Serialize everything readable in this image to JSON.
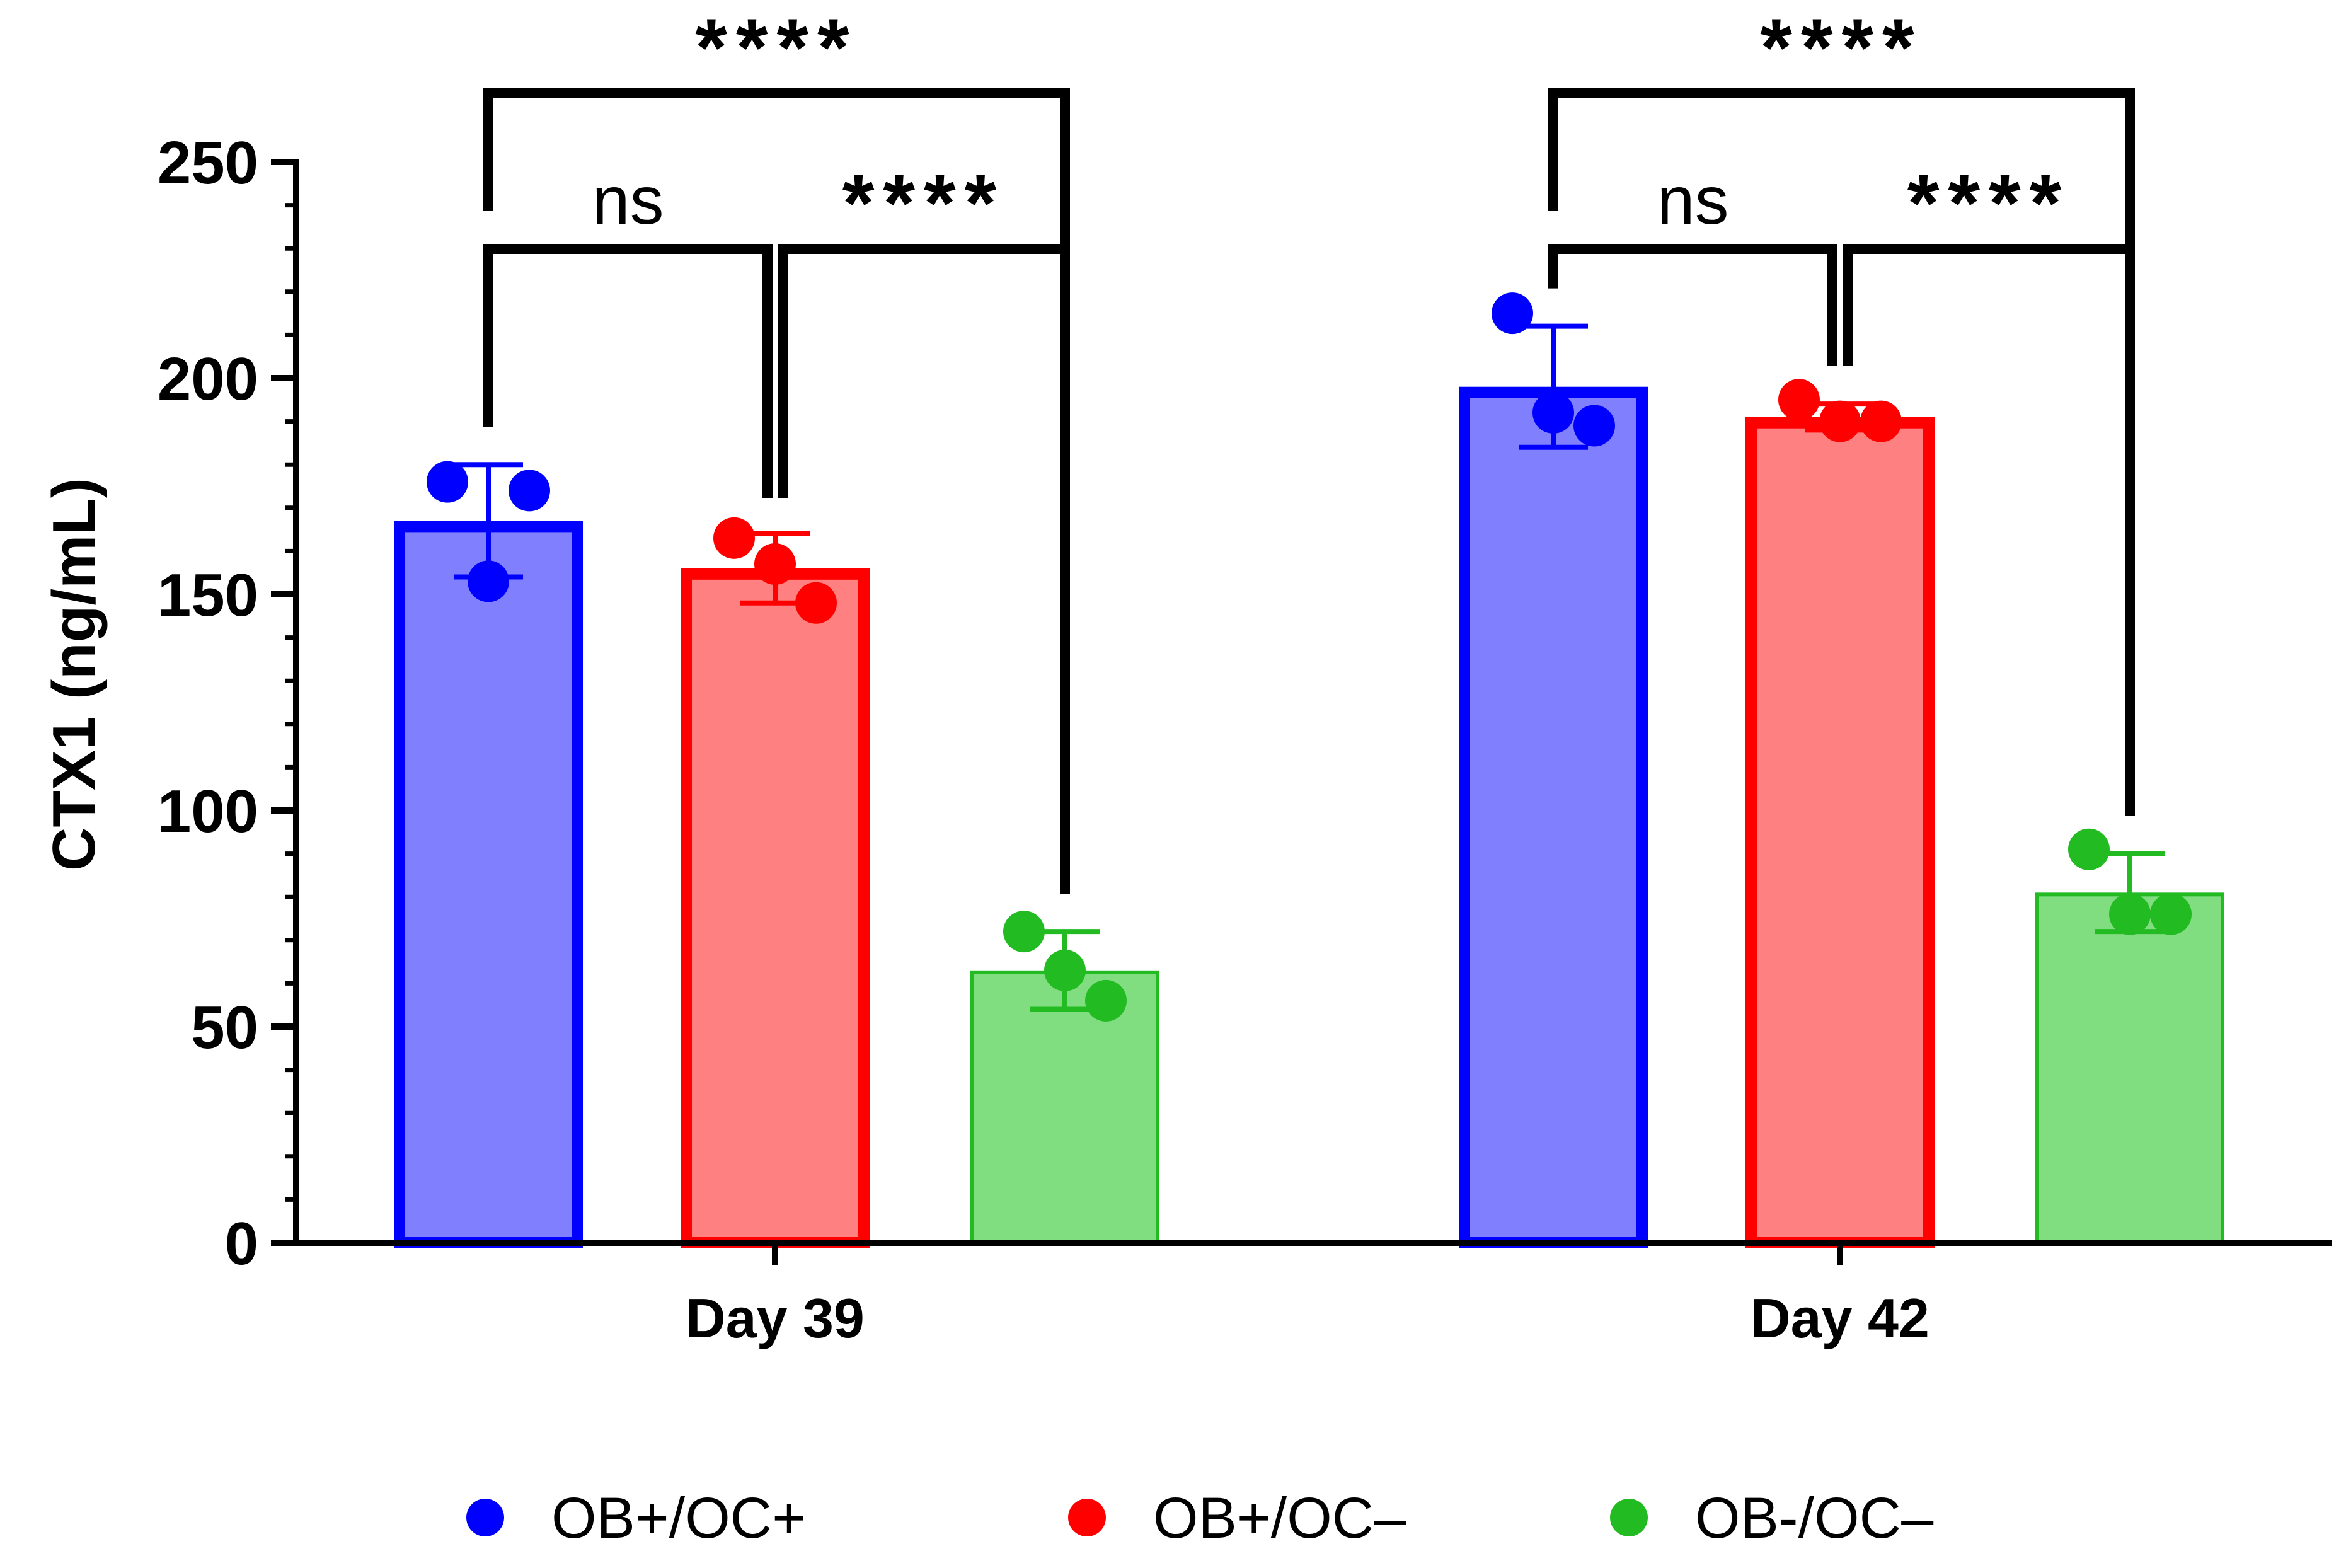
{
  "chart_data": {
    "type": "bar",
    "title": "",
    "xlabel": "",
    "ylabel": "CTX1  (ng/mL)",
    "ylim": [
      0,
      250
    ],
    "yticks": [
      0,
      50,
      100,
      150,
      200,
      250
    ],
    "categories": [
      "Day 39",
      "Day 42"
    ],
    "series": [
      {
        "name": "OB+/OC+",
        "fill": "#8080ff",
        "stroke": "#0000ff",
        "values": [
          167,
          198
        ],
        "errors": [
          13,
          14
        ],
        "points": [
          [
            176,
            174,
            153
          ],
          [
            215,
            189,
            192
          ]
        ]
      },
      {
        "name": "OB+/OC–",
        "fill": "#ff8080",
        "stroke": "#ff0000",
        "values": [
          156,
          191
        ],
        "errors": [
          8,
          3
        ],
        "points": [
          [
            163,
            148,
            157
          ],
          [
            195,
            190,
            190
          ]
        ]
      },
      {
        "name": "OB-/OC–",
        "fill": "#80dd80",
        "stroke": "#22bb22",
        "values": [
          63,
          81
        ],
        "errors": [
          9,
          9
        ],
        "points": [
          [
            72,
            56,
            63
          ],
          [
            91,
            76,
            76
          ]
        ]
      }
    ],
    "significance": [
      {
        "group": 0,
        "from": 0,
        "to": 1,
        "label": "ns"
      },
      {
        "group": 0,
        "from": 1,
        "to": 2,
        "label": "****"
      },
      {
        "group": 0,
        "from": 0,
        "to": 2,
        "label": "****"
      },
      {
        "group": 1,
        "from": 0,
        "to": 1,
        "label": "ns"
      },
      {
        "group": 1,
        "from": 1,
        "to": 2,
        "label": "****"
      },
      {
        "group": 1,
        "from": 0,
        "to": 2,
        "label": "****"
      }
    ],
    "legend_position": "bottom",
    "grid": false
  }
}
